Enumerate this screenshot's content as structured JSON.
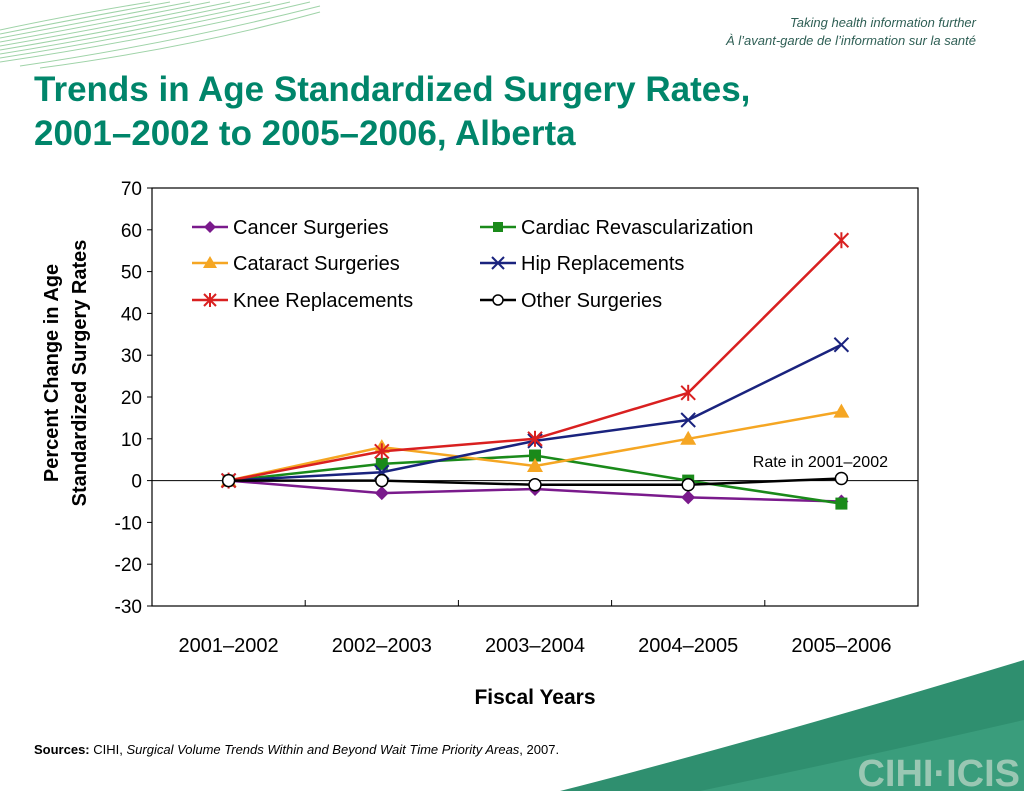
{
  "header": {
    "tagline_en": "Taking health information further",
    "tagline_fr": "À l’avant-garde de l’information sur la santé",
    "title_line1": "Trends in Age Standardized Surgery Rates,",
    "title_line2": "2001–2002 to 2005–2006, Alberta",
    "logo_text": "CIHI·ICIS"
  },
  "chart_data": {
    "type": "line",
    "title": "Trends in Age Standardized Surgery Rates, 2001–2002 to 2005–2006, Alberta",
    "xlabel": "Fiscal Years",
    "ylabel_line1": "Percent Change in Age",
    "ylabel_line2": "Standardized Surgery Rates",
    "categories": [
      "2001–2002",
      "2002–2003",
      "2003–2004",
      "2004–2005",
      "2005–2006"
    ],
    "ylim": [
      -30,
      70
    ],
    "yticks": [
      "70",
      "60",
      "50",
      "40",
      "30",
      "20",
      "10",
      "0",
      "-10",
      "-20",
      "-30"
    ],
    "grid": false,
    "legend_position": "top",
    "annotation": "Rate in 2001–2002",
    "series": [
      {
        "name": "Cancer Surgeries",
        "color": "#7a1a8c",
        "marker": "diamond",
        "values": [
          0,
          -3,
          -2,
          -4,
          -5
        ]
      },
      {
        "name": "Cardiac Revascularization",
        "color": "#1a8a1a",
        "marker": "square",
        "values": [
          0,
          4,
          6,
          0,
          -5.5
        ]
      },
      {
        "name": "Cataract Surgeries",
        "color": "#f5a623",
        "marker": "triangle",
        "values": [
          0,
          8,
          3.5,
          10,
          16.5
        ]
      },
      {
        "name": "Hip Replacements",
        "color": "#1a237e",
        "marker": "x",
        "values": [
          0,
          2,
          9.5,
          14.5,
          32.5
        ]
      },
      {
        "name": "Knee Replacements",
        "color": "#d92020",
        "marker": "asterisk",
        "values": [
          0,
          7,
          10,
          21,
          57.5
        ]
      },
      {
        "name": "Other Surgeries",
        "color": "#000000",
        "marker": "circle",
        "values": [
          0,
          0,
          -1,
          -1,
          0.5
        ]
      }
    ]
  },
  "sources": {
    "label": "Sources:",
    "org": " CIHI, ",
    "publication": "Surgical Volume Trends Within and Beyond Wait Time Priority Areas",
    "year": ", 2007."
  }
}
